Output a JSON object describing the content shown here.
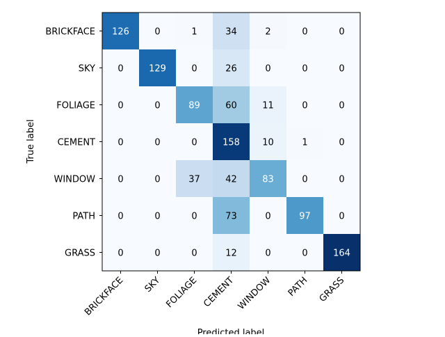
{
  "chart_data": {
    "type": "heatmap",
    "title": "",
    "xlabel": "Predicted label",
    "ylabel": "True label",
    "x_categories": [
      "BRICKFACE",
      "SKY",
      "FOLIAGE",
      "CEMENT",
      "WINDOW",
      "PATH",
      "GRASS"
    ],
    "y_categories": [
      "BRICKFACE",
      "SKY",
      "FOLIAGE",
      "CEMENT",
      "WINDOW",
      "PATH",
      "GRASS"
    ],
    "values": [
      [
        126,
        0,
        1,
        34,
        2,
        0,
        0
      ],
      [
        0,
        129,
        0,
        26,
        0,
        0,
        0
      ],
      [
        0,
        0,
        89,
        60,
        11,
        0,
        0
      ],
      [
        0,
        0,
        0,
        158,
        10,
        1,
        0
      ],
      [
        0,
        0,
        37,
        42,
        83,
        0,
        0
      ],
      [
        0,
        0,
        0,
        73,
        0,
        97,
        0
      ],
      [
        0,
        0,
        0,
        12,
        0,
        0,
        164
      ]
    ],
    "colormap": "Blues",
    "color_range": [
      0,
      164
    ],
    "grid": false,
    "legend": "none"
  }
}
